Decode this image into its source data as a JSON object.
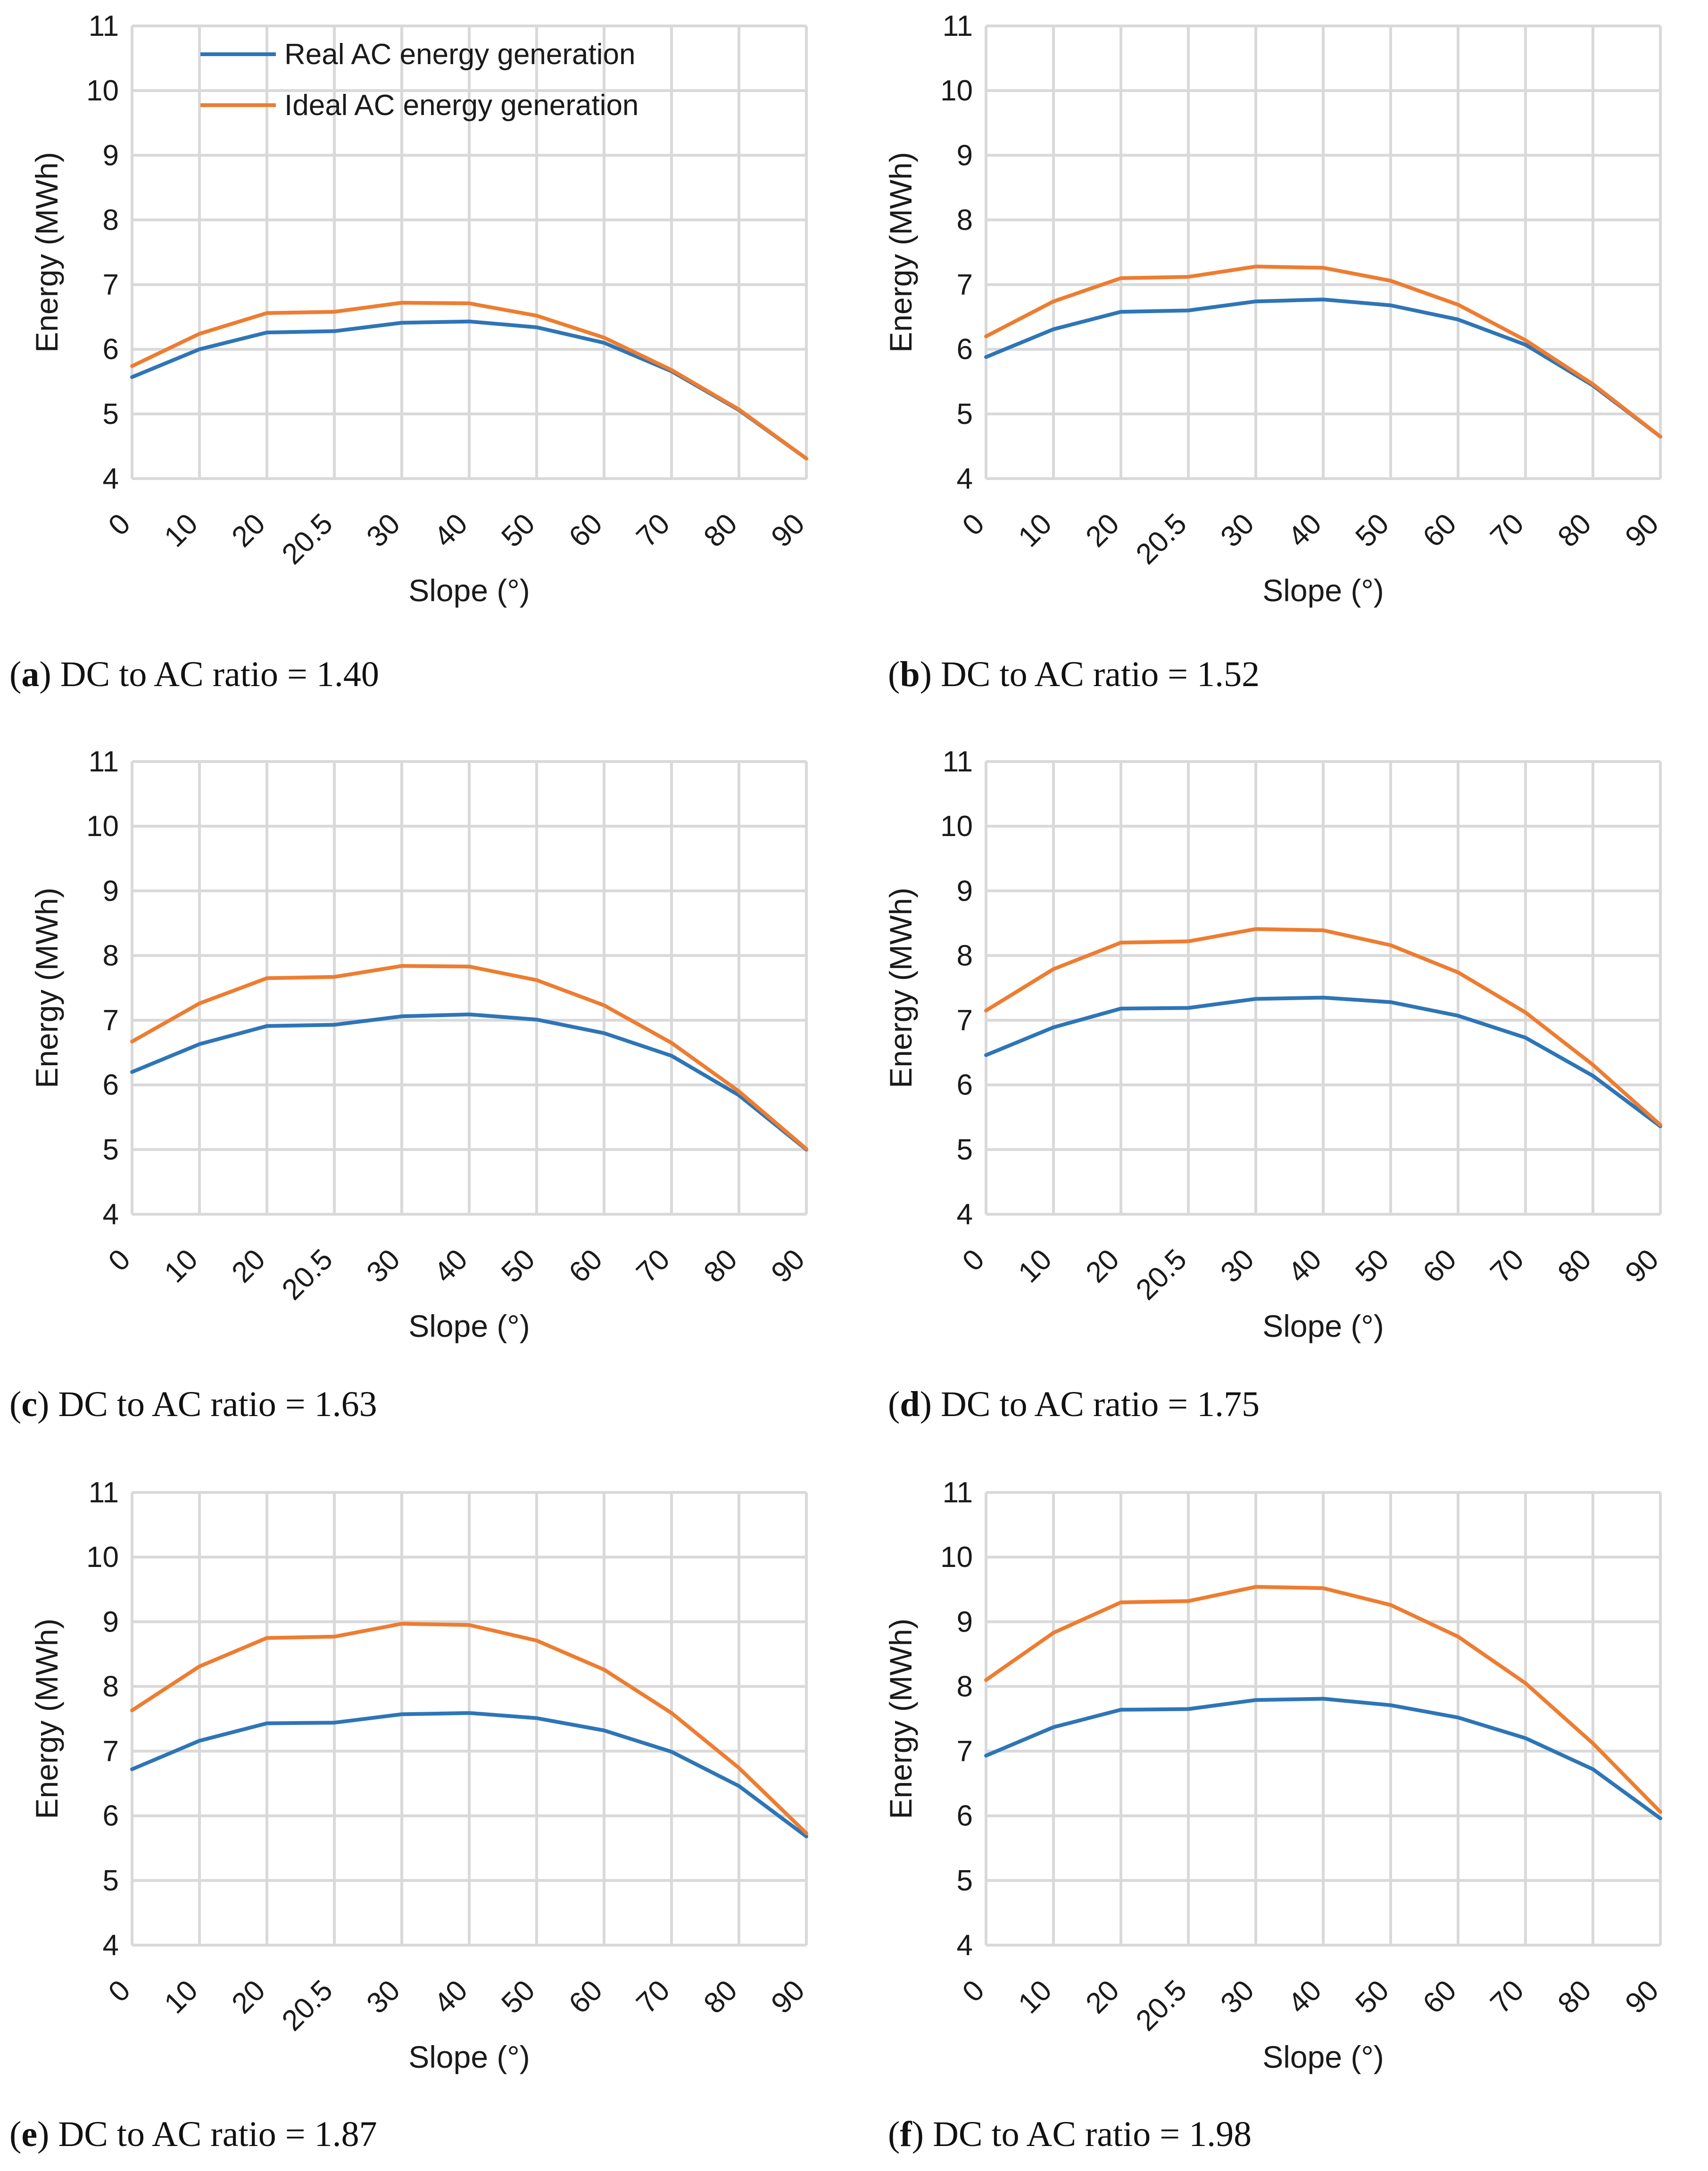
{
  "chart_data": [
    {
      "type": "line",
      "panel": "a",
      "caption": "DC to AC ratio = 1.40",
      "title": "",
      "xlabel": "Slope (°)",
      "ylabel": "Energy (MWh)",
      "categories": [
        "0",
        "10",
        "20",
        "20.5",
        "30",
        "40",
        "50",
        "60",
        "70",
        "80",
        "90"
      ],
      "ylim": [
        4,
        11
      ],
      "yticks": [
        "4",
        "5",
        "6",
        "7",
        "8",
        "9",
        "10",
        "11"
      ],
      "legend": "top-left",
      "show_legend": true,
      "series": [
        {
          "name": "Real AC energy generation",
          "color": "#2E75B6",
          "values": [
            5.57,
            6.0,
            6.26,
            6.28,
            6.41,
            6.43,
            6.34,
            6.1,
            5.66,
            5.06,
            4.31
          ]
        },
        {
          "name": "Ideal AC energy generation",
          "color": "#ED7D31",
          "values": [
            5.74,
            6.24,
            6.56,
            6.58,
            6.72,
            6.71,
            6.52,
            6.18,
            5.68,
            5.07,
            4.31
          ]
        }
      ]
    },
    {
      "type": "line",
      "panel": "b",
      "caption": "DC to AC ratio = 1.52",
      "title": "",
      "xlabel": "Slope (°)",
      "ylabel": "Energy (MWh)",
      "categories": [
        "0",
        "10",
        "20",
        "20.5",
        "30",
        "40",
        "50",
        "60",
        "70",
        "80",
        "90"
      ],
      "ylim": [
        4,
        11
      ],
      "yticks": [
        "4",
        "5",
        "6",
        "7",
        "8",
        "9",
        "10",
        "11"
      ],
      "legend": "none",
      "show_legend": false,
      "series": [
        {
          "name": "Real AC energy generation",
          "color": "#2E75B6",
          "values": [
            5.88,
            6.31,
            6.58,
            6.6,
            6.74,
            6.77,
            6.68,
            6.46,
            6.07,
            5.44,
            4.65
          ]
        },
        {
          "name": "Ideal AC energy generation",
          "color": "#ED7D31",
          "values": [
            6.2,
            6.74,
            7.1,
            7.12,
            7.28,
            7.26,
            7.06,
            6.69,
            6.14,
            5.46,
            4.65
          ]
        }
      ]
    },
    {
      "type": "line",
      "panel": "c",
      "caption": "DC to AC ratio = 1.63",
      "title": "",
      "xlabel": "Slope (°)",
      "ylabel": "Energy (MWh)",
      "categories": [
        "0",
        "10",
        "20",
        "20.5",
        "30",
        "40",
        "50",
        "60",
        "70",
        "80",
        "90"
      ],
      "ylim": [
        4,
        11
      ],
      "yticks": [
        "4",
        "5",
        "6",
        "7",
        "8",
        "9",
        "10",
        "11"
      ],
      "legend": "none",
      "show_legend": false,
      "series": [
        {
          "name": "Real AC energy generation",
          "color": "#2E75B6",
          "values": [
            6.2,
            6.63,
            6.91,
            6.93,
            7.06,
            7.09,
            7.01,
            6.8,
            6.45,
            5.84,
            5.0
          ]
        },
        {
          "name": "Ideal AC energy generation",
          "color": "#ED7D31",
          "values": [
            6.67,
            7.26,
            7.65,
            7.67,
            7.84,
            7.83,
            7.62,
            7.23,
            6.65,
            5.9,
            5.01
          ]
        }
      ]
    },
    {
      "type": "line",
      "panel": "d",
      "caption": "DC to AC ratio = 1.75",
      "title": "",
      "xlabel": "Slope (°)",
      "ylabel": "Energy (MWh)",
      "categories": [
        "0",
        "10",
        "20",
        "20.5",
        "30",
        "40",
        "50",
        "60",
        "70",
        "80",
        "90"
      ],
      "ylim": [
        4,
        11
      ],
      "yticks": [
        "4",
        "5",
        "6",
        "7",
        "8",
        "9",
        "10",
        "11"
      ],
      "legend": "none",
      "show_legend": false,
      "series": [
        {
          "name": "Real AC energy generation",
          "color": "#2E75B6",
          "values": [
            6.46,
            6.89,
            7.18,
            7.19,
            7.33,
            7.35,
            7.28,
            7.07,
            6.73,
            6.14,
            5.36
          ]
        },
        {
          "name": "Ideal AC energy generation",
          "color": "#ED7D31",
          "values": [
            7.15,
            7.79,
            8.2,
            8.22,
            8.41,
            8.39,
            8.16,
            7.74,
            7.12,
            6.31,
            5.38
          ]
        }
      ]
    },
    {
      "type": "line",
      "panel": "e",
      "caption": "DC to AC ratio = 1.87",
      "title": "",
      "xlabel": "Slope (°)",
      "ylabel": "Energy (MWh)",
      "categories": [
        "0",
        "10",
        "20",
        "20.5",
        "30",
        "40",
        "50",
        "60",
        "70",
        "80",
        "90"
      ],
      "ylim": [
        4,
        11
      ],
      "yticks": [
        "4",
        "5",
        "6",
        "7",
        "8",
        "9",
        "10",
        "11"
      ],
      "legend": "none",
      "show_legend": false,
      "series": [
        {
          "name": "Real AC energy generation",
          "color": "#2E75B6",
          "values": [
            6.72,
            7.16,
            7.43,
            7.44,
            7.57,
            7.59,
            7.51,
            7.32,
            6.99,
            6.46,
            5.68
          ]
        },
        {
          "name": "Ideal AC energy generation",
          "color": "#ED7D31",
          "values": [
            7.63,
            8.31,
            8.75,
            8.77,
            8.97,
            8.95,
            8.71,
            8.26,
            7.59,
            6.74,
            5.73
          ]
        }
      ]
    },
    {
      "type": "line",
      "panel": "f",
      "caption": "DC to AC ratio = 1.98",
      "title": "",
      "xlabel": "Slope (°)",
      "ylabel": "Energy (MWh)",
      "categories": [
        "0",
        "10",
        "20",
        "20.5",
        "30",
        "40",
        "50",
        "60",
        "70",
        "80",
        "90"
      ],
      "ylim": [
        4,
        11
      ],
      "yticks": [
        "4",
        "5",
        "6",
        "7",
        "8",
        "9",
        "10",
        "11"
      ],
      "legend": "none",
      "show_legend": false,
      "series": [
        {
          "name": "Real AC energy generation",
          "color": "#2E75B6",
          "values": [
            6.93,
            7.37,
            7.64,
            7.65,
            7.79,
            7.81,
            7.71,
            7.52,
            7.2,
            6.72,
            5.96
          ]
        },
        {
          "name": "Ideal AC energy generation",
          "color": "#ED7D31",
          "values": [
            8.1,
            8.83,
            9.3,
            9.32,
            9.54,
            9.52,
            9.26,
            8.77,
            8.05,
            7.12,
            6.06
          ]
        }
      ]
    }
  ]
}
